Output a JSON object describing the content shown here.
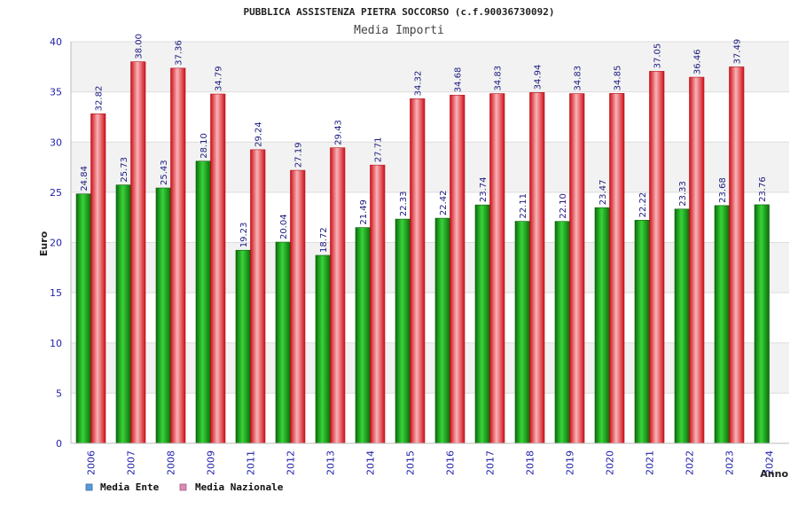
{
  "chart_data": {
    "type": "bar",
    "title": "PUBBLICA ASSISTENZA PIETRA SOCCORSO (c.f.90036730092)",
    "subtitle": "Media Importi",
    "xlabel": "Anno",
    "ylabel": "Euro",
    "ylim": [
      0,
      40
    ],
    "yticks": [
      "0",
      "5",
      "10",
      "15",
      "20",
      "25",
      "30",
      "35",
      "40"
    ],
    "grid": true,
    "legend_position": "bottom-left",
    "categories": [
      "2006",
      "2007",
      "2008",
      "2009",
      "2011",
      "2012",
      "2013",
      "2014",
      "2015",
      "2016",
      "2017",
      "2018",
      "2019",
      "2020",
      "2021",
      "2022",
      "2023",
      "2024"
    ],
    "series": [
      {
        "name": "Media Ente",
        "color": "#1a9e1a",
        "legend_color": "#5b9bd5",
        "values": [
          24.84,
          25.73,
          25.43,
          28.1,
          19.23,
          20.04,
          18.72,
          21.49,
          22.33,
          22.42,
          23.74,
          22.11,
          22.1,
          23.47,
          22.22,
          23.33,
          23.68,
          23.76
        ],
        "labels": [
          "24.84",
          "25.73",
          "25.43",
          "28.10",
          "19.23",
          "20.04",
          "18.72",
          "21.49",
          "22.33",
          "22.42",
          "23.74",
          "22.11",
          "22.10",
          "23.47",
          "22.22",
          "23.33",
          "23.68",
          "23.76"
        ]
      },
      {
        "name": "Media Nazionale",
        "color": "#e8202a",
        "legend_color": "#d98cb3",
        "values": [
          32.82,
          38.0,
          37.36,
          34.79,
          29.24,
          27.19,
          29.43,
          27.71,
          34.32,
          34.68,
          34.83,
          34.94,
          34.83,
          34.85,
          37.05,
          36.46,
          37.49,
          null
        ],
        "labels": [
          "32.82",
          "38.00",
          "37.36",
          "34.79",
          "29.24",
          "27.19",
          "29.43",
          "27.71",
          "34.32",
          "34.68",
          "34.83",
          "34.94",
          "34.83",
          "34.85",
          "37.05",
          "36.46",
          "37.49",
          null
        ]
      }
    ]
  }
}
